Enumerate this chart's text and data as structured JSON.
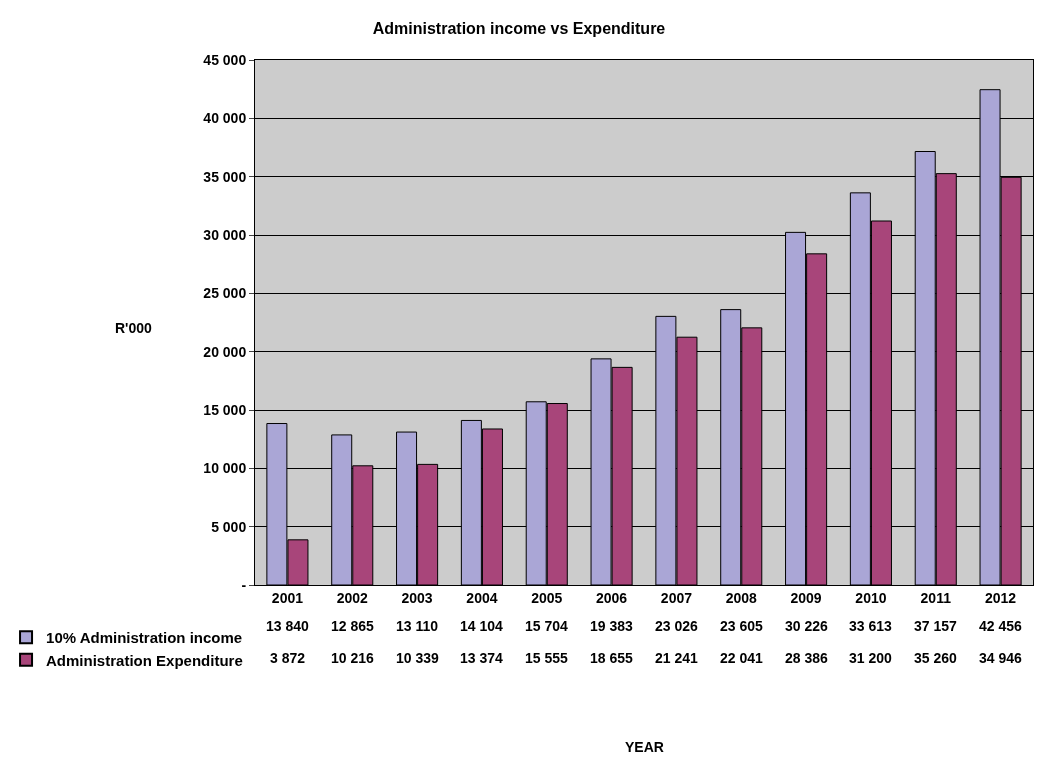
{
  "chart_data": {
    "type": "bar",
    "title": "Administration income vs Expenditure",
    "annotations": [
      "YEAR"
    ],
    "ylabel": "R'000",
    "categories": [
      "2001",
      "2002",
      "2003",
      "2004",
      "2005",
      "2006",
      "2007",
      "2008",
      "2009",
      "2010",
      "2011",
      "2012"
    ],
    "series": [
      {
        "name": "10% Administration income",
        "color": "#aaa6d6",
        "values": [
          13840,
          12865,
          13110,
          14104,
          15704,
          19383,
          23026,
          23605,
          30226,
          33613,
          37157,
          42456
        ],
        "value_labels": [
          "13 840",
          "12 865",
          "13 110",
          "14 104",
          "15 704",
          "19 383",
          "23 026",
          "23 605",
          "30 226",
          "33 613",
          "37 157",
          "42 456"
        ]
      },
      {
        "name": "Administration Expenditure",
        "color": "#a8457a",
        "values": [
          3872,
          10216,
          10339,
          13374,
          15555,
          18655,
          21241,
          22041,
          28386,
          31200,
          35260,
          34946
        ],
        "value_labels": [
          "3 872",
          "10 216",
          "10 339",
          "13 374",
          "15 555",
          "18 655",
          "21 241",
          "22 041",
          "28 386",
          "31 200",
          "35 260",
          "34 946"
        ]
      }
    ],
    "ylim": [
      0,
      45000
    ],
    "yticks": [
      {
        "value": 0,
        "label": "-"
      },
      {
        "value": 5000,
        "label": "5 000"
      },
      {
        "value": 10000,
        "label": "10 000"
      },
      {
        "value": 15000,
        "label": "15 000"
      },
      {
        "value": 20000,
        "label": "20 000"
      },
      {
        "value": 25000,
        "label": "25 000"
      },
      {
        "value": 30000,
        "label": "30 000"
      },
      {
        "value": 35000,
        "label": "35 000"
      },
      {
        "value": 40000,
        "label": "40 000"
      },
      {
        "value": 45000,
        "label": "45 000"
      }
    ],
    "grid": "y",
    "legend": "bottom left"
  }
}
